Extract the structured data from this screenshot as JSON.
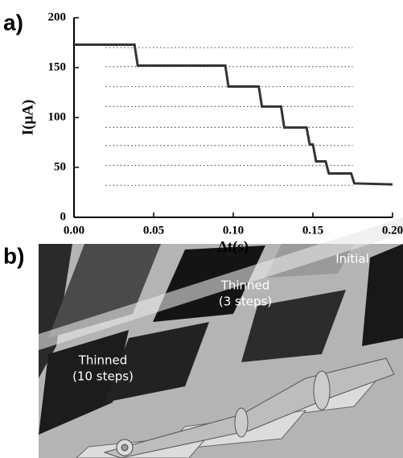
{
  "panel_labels": [
    "a)",
    "b)"
  ],
  "chart_data": {
    "type": "line",
    "x_label": "Δt(s)",
    "y_label": "I(μA)",
    "x": [
      0,
      0.038,
      0.04,
      0.095,
      0.097,
      0.116,
      0.118,
      0.13,
      0.132,
      0.146,
      0.148,
      0.15,
      0.152,
      0.158,
      0.16,
      0.174,
      0.176,
      0.2
    ],
    "values": [
      173,
      173,
      152,
      152,
      131,
      131,
      111,
      111,
      90,
      90,
      73,
      73,
      56,
      56,
      44,
      44,
      34,
      33
    ],
    "color": "#333333",
    "guide_levels": [
      170,
      151,
      131,
      111,
      90,
      72,
      52,
      32
    ],
    "guide_x": [
      0.02,
      0.175
    ],
    "xlim": [
      0,
      0.2
    ],
    "ylim": [
      0,
      200
    ],
    "xticks": [
      {
        "value": 0,
        "label": "0.00"
      },
      {
        "value": 0.05,
        "label": "0.05"
      },
      {
        "value": 0.1,
        "label": "0.10"
      },
      {
        "value": 0.15,
        "label": "0.15"
      },
      {
        "value": 0.2,
        "label": "0.20"
      }
    ],
    "yticks": [
      0,
      50,
      100,
      150,
      200
    ]
  },
  "image_labels": [
    {
      "lines": [
        "Thinned",
        "(10 steps)"
      ]
    },
    {
      "lines": [
        "Thinned",
        "(3 steps)"
      ]
    },
    {
      "lines": [
        "Initial"
      ]
    }
  ]
}
